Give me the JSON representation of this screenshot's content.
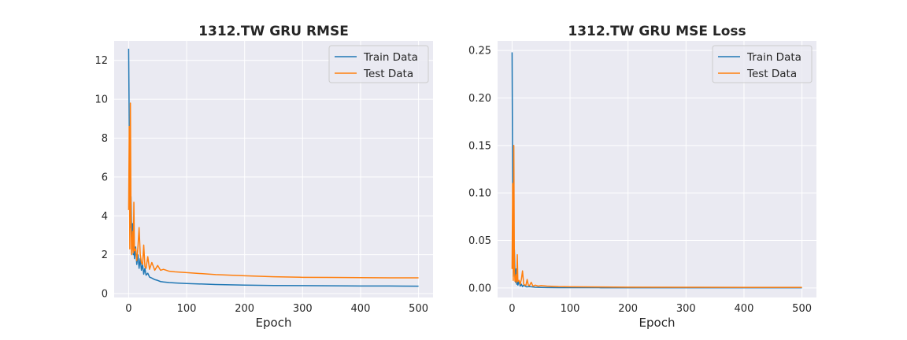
{
  "chart_data": [
    {
      "type": "line",
      "title": "1312.TW  GRU RMSE",
      "xlabel": "Epoch",
      "ylabel": "",
      "xlim": [
        -25,
        525
      ],
      "ylim": [
        -0.2,
        13.0
      ],
      "xticks": [
        0,
        100,
        200,
        300,
        400,
        500
      ],
      "yticks": [
        0,
        2,
        4,
        6,
        8,
        10,
        12
      ],
      "ytick_labels": [
        "0",
        "2",
        "4",
        "6",
        "8",
        "10",
        "12"
      ],
      "grid": true,
      "legend_position": "top-right",
      "series": [
        {
          "name": "Train Data",
          "color": "#1f77b4",
          "x": [
            0,
            1,
            2,
            3,
            4,
            5,
            6,
            7,
            8,
            9,
            10,
            12,
            14,
            16,
            18,
            20,
            22,
            24,
            26,
            28,
            30,
            33,
            36,
            40,
            45,
            50,
            55,
            60,
            70,
            80,
            100,
            150,
            200,
            250,
            300,
            350,
            400,
            450,
            500
          ],
          "values": [
            12.6,
            8.5,
            4.3,
            3.4,
            5.0,
            3.5,
            2.4,
            3.6,
            2.0,
            2.8,
            1.8,
            2.4,
            1.5,
            2.0,
            1.3,
            1.8,
            1.2,
            1.5,
            1.0,
            1.3,
            0.95,
            1.05,
            0.85,
            0.8,
            0.72,
            0.68,
            0.62,
            0.6,
            0.57,
            0.55,
            0.52,
            0.47,
            0.44,
            0.42,
            0.41,
            0.4,
            0.39,
            0.39,
            0.38
          ]
        },
        {
          "name": "Test Data",
          "color": "#ff7f0e",
          "x": [
            0,
            1,
            2,
            3,
            4,
            5,
            6,
            7,
            8,
            9,
            10,
            12,
            14,
            16,
            18,
            20,
            22,
            24,
            26,
            28,
            30,
            33,
            36,
            40,
            45,
            50,
            55,
            60,
            70,
            80,
            100,
            150,
            200,
            250,
            300,
            350,
            400,
            450,
            500
          ],
          "values": [
            4.3,
            8.6,
            2.3,
            9.8,
            4.1,
            2.0,
            2.4,
            3.2,
            2.1,
            4.7,
            2.2,
            2.3,
            1.7,
            2.4,
            3.4,
            2.0,
            1.6,
            1.5,
            2.5,
            1.4,
            1.3,
            1.9,
            1.25,
            1.6,
            1.2,
            1.45,
            1.2,
            1.25,
            1.15,
            1.12,
            1.08,
            0.98,
            0.92,
            0.87,
            0.84,
            0.83,
            0.82,
            0.81,
            0.81
          ]
        }
      ]
    },
    {
      "type": "line",
      "title": "1312.TW  GRU MSE Loss",
      "xlabel": "Epoch",
      "ylabel": "",
      "xlim": [
        -25,
        525
      ],
      "ylim": [
        -0.01,
        0.26
      ],
      "xticks": [
        0,
        100,
        200,
        300,
        400,
        500
      ],
      "yticks": [
        0,
        0.05,
        0.1,
        0.15,
        0.2,
        0.25
      ],
      "ytick_labels": [
        "0.00",
        "0.05",
        "0.10",
        "0.15",
        "0.20",
        "0.25"
      ],
      "grid": true,
      "legend_position": "top-right",
      "series": [
        {
          "name": "Train Data",
          "color": "#1f77b4",
          "x": [
            0,
            1,
            2,
            3,
            4,
            5,
            6,
            7,
            8,
            9,
            10,
            12,
            14,
            16,
            18,
            20,
            25,
            30,
            40,
            50,
            60,
            80,
            100,
            150,
            200,
            300,
            400,
            500
          ],
          "values": [
            0.248,
            0.1,
            0.012,
            0.03,
            0.04,
            0.015,
            0.006,
            0.02,
            0.004,
            0.012,
            0.003,
            0.007,
            0.002,
            0.004,
            0.0015,
            0.003,
            0.0012,
            0.0015,
            0.0008,
            0.0006,
            0.0005,
            0.0004,
            0.0003,
            0.0003,
            0.0002,
            0.0002,
            0.0002,
            0.0002
          ]
        },
        {
          "name": "Test Data",
          "color": "#ff7f0e",
          "x": [
            0,
            1,
            2,
            3,
            4,
            5,
            6,
            7,
            8,
            9,
            10,
            12,
            14,
            16,
            18,
            20,
            22,
            24,
            26,
            28,
            30,
            33,
            36,
            40,
            45,
            50,
            60,
            80,
            100,
            150,
            200,
            300,
            400,
            500
          ],
          "values": [
            0.02,
            0.11,
            0.008,
            0.15,
            0.02,
            0.007,
            0.009,
            0.014,
            0.006,
            0.035,
            0.007,
            0.008,
            0.004,
            0.009,
            0.018,
            0.004,
            0.003,
            0.003,
            0.009,
            0.003,
            0.0025,
            0.006,
            0.002,
            0.003,
            0.002,
            0.0025,
            0.002,
            0.0015,
            0.0013,
            0.0011,
            0.0009,
            0.0008,
            0.0007,
            0.0007
          ]
        }
      ]
    }
  ]
}
